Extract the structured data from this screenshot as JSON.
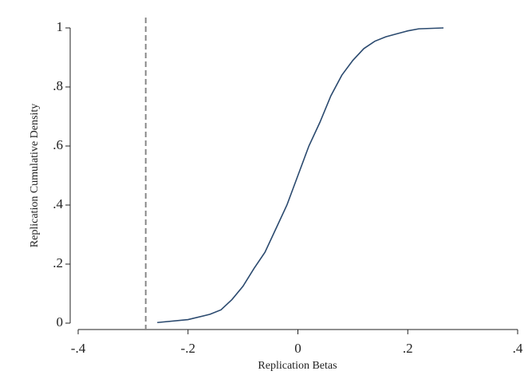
{
  "chart_data": {
    "type": "line",
    "x_label": "Replication Betas",
    "y_label": "Replication Cumulative Density",
    "x": [
      -0.256,
      -0.2,
      -0.16,
      -0.14,
      -0.12,
      -0.1,
      -0.08,
      -0.06,
      -0.04,
      -0.02,
      0,
      0.02,
      0.04,
      0.06,
      0.08,
      0.1,
      0.12,
      0.14,
      0.16,
      0.18,
      0.2,
      0.22,
      0.265
    ],
    "series": [
      {
        "color": "#2b4a6f",
        "values": [
          0.002,
          0.012,
          0.03,
          0.045,
          0.08,
          0.125,
          0.185,
          0.24,
          0.32,
          0.4,
          0.5,
          0.6,
          0.68,
          0.77,
          0.84,
          0.89,
          0.93,
          0.955,
          0.97,
          0.98,
          0.99,
          0.997,
          1.0
        ]
      }
    ],
    "vline": -0.277,
    "vline_color": "#888888",
    "xlim": [
      -0.4,
      0.4
    ],
    "xticks": [
      {
        "value": -0.4,
        "label": "-.4"
      },
      {
        "value": -0.2,
        "label": "-.2"
      },
      0,
      {
        "value": 0.2,
        "label": ".2"
      },
      {
        "value": 0.4,
        "label": ".4"
      }
    ],
    "ylim": [
      0,
      1
    ],
    "yticks": [
      0,
      {
        "value": 0.2,
        "label": ".2"
      },
      {
        "value": 0.4,
        "label": ".4"
      },
      {
        "value": 0.6,
        "label": ".6"
      },
      {
        "value": 0.8,
        "label": ".8"
      },
      1
    ]
  }
}
